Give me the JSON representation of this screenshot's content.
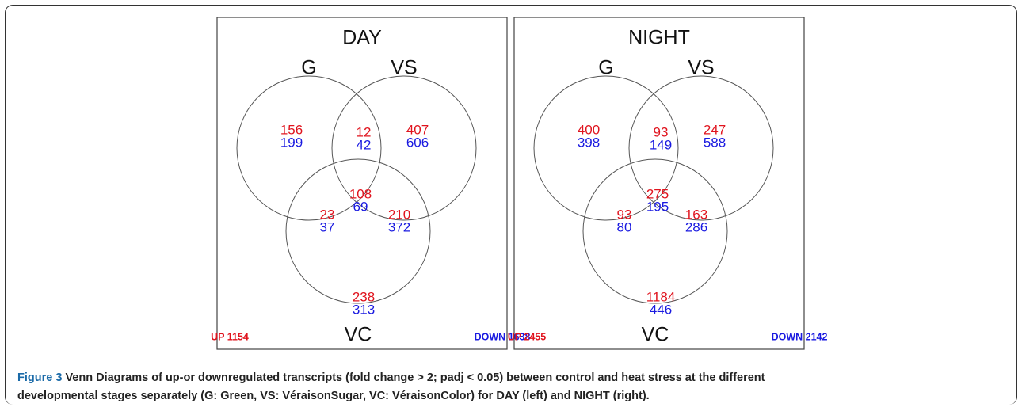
{
  "panels": [
    {
      "title": "DAY",
      "sets": [
        "G",
        "VS",
        "VC"
      ],
      "regions": {
        "g": {
          "up": 156,
          "down": 199
        },
        "g_vs": {
          "up": 12,
          "down": 42
        },
        "vs": {
          "up": 407,
          "down": 606
        },
        "all": {
          "up": 108,
          "down": 69
        },
        "g_vc": {
          "up": 23,
          "down": 37
        },
        "vs_vc": {
          "up": 210,
          "down": 372
        },
        "vc": {
          "up": 238,
          "down": 313
        }
      },
      "up_total": "UP 1154",
      "down_total": "DOWN 1638"
    },
    {
      "title": "NIGHT",
      "sets": [
        "G",
        "VS",
        "VC"
      ],
      "regions": {
        "g": {
          "up": 400,
          "down": 398
        },
        "g_vs": {
          "up": 93,
          "down": 149
        },
        "vs": {
          "up": 247,
          "down": 588
        },
        "all": {
          "up": 275,
          "down": 195
        },
        "g_vc": {
          "up": 93,
          "down": 80
        },
        "vs_vc": {
          "up": 163,
          "down": 286
        },
        "vc": {
          "up": 1184,
          "down": 446
        }
      },
      "up_total": "UP 2455",
      "down_total": "DOWN 2142"
    }
  ],
  "caption": {
    "label": "Figure 3",
    "text": "Venn Diagrams of up-or downregulated transcripts (fold change > 2; padj < 0.05) between control and heat stress at the different developmental stages separately (G: Green, VS: VéraisonSugar, VC: VéraisonColor) for DAY (left) and NIGHT (right)."
  }
}
